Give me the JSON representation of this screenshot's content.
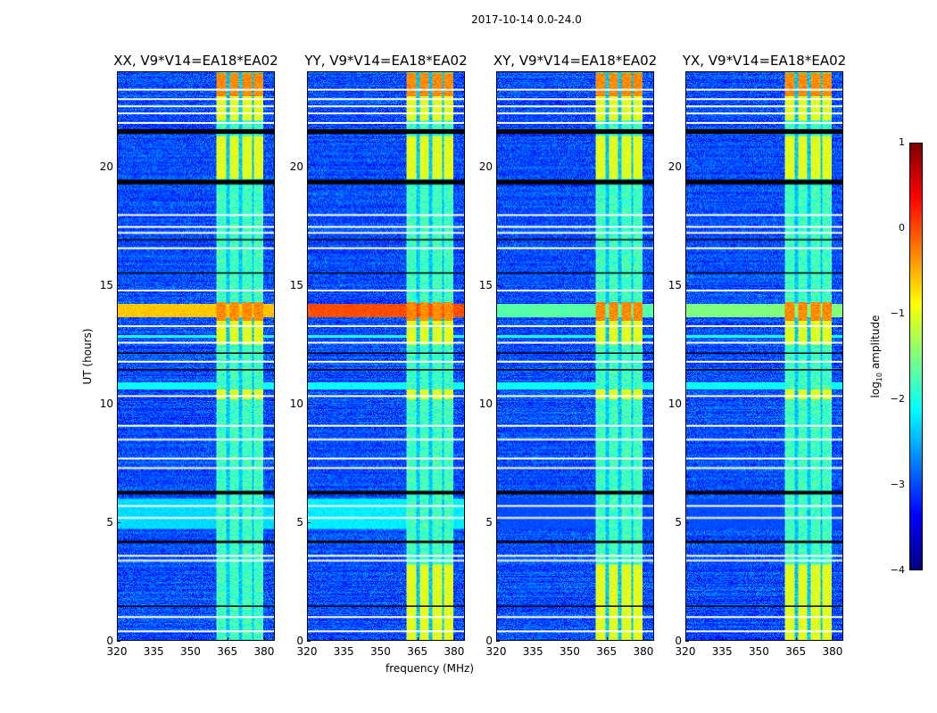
{
  "chart_data": {
    "type": "heatmap",
    "title": "2017-10-14 0.0-24.0",
    "xlabel": "frequency (MHz)",
    "ylabel": "UT (hours)",
    "xlim": [
      320,
      384.4
    ],
    "ylim": [
      0,
      24
    ],
    "xticks": [
      "320",
      "335",
      "350",
      "365",
      "380"
    ],
    "xtick_values": [
      320,
      335,
      350,
      365,
      380
    ],
    "yticks": [
      "0",
      "5",
      "10",
      "15",
      "20"
    ],
    "ytick_values": [
      0,
      5,
      10,
      15,
      20
    ],
    "colorbar": {
      "label": "log₁₀ amplitude",
      "label_main": "log",
      "label_sub": "10",
      "label_rest": " amplitude",
      "range": [
        -4,
        1
      ],
      "ticks": [
        "1",
        "0",
        "−1",
        "−2",
        "−3",
        "−4"
      ],
      "tick_values": [
        1,
        0,
        -1,
        -2,
        -3,
        -4
      ],
      "colormap": "jet"
    },
    "background_log_amplitude": -3.0,
    "rfi_band_mhz": [
      360.7,
      380
    ],
    "rfi_columns_mhz": [
      [
        360.7,
        364.7
      ],
      [
        366,
        369.5
      ],
      [
        371,
        375.3
      ],
      [
        376,
        380
      ]
    ],
    "flagged_white_hours": [
      23.3,
      22.9,
      22.6,
      22.3,
      21.9,
      18.0,
      17.5,
      17.25,
      16.6,
      14.8,
      13.3,
      12.6,
      11.8,
      10.35,
      9.1,
      8.5,
      7.7,
      7.3,
      5.7,
      5.2,
      3.6,
      3.4,
      1.0,
      0.4
    ],
    "flagged_black_hours": [
      [
        21.4,
        21.6
      ],
      [
        19.25,
        19.45
      ],
      [
        16.9,
        16.95
      ],
      [
        15.5,
        15.55
      ],
      [
        12.1,
        12.15
      ],
      [
        11.4,
        11.45
      ],
      [
        6.15,
        6.3
      ],
      [
        4.1,
        4.2
      ],
      [
        1.4,
        1.45
      ]
    ],
    "panels": [
      {
        "title": "XX, V9*V14=EA18*EA02",
        "broadband_14h": -0.6,
        "band_0_3h_bright": false,
        "low_5_6h": -2.3
      },
      {
        "title": "YY, V9*V14=EA18*EA02",
        "broadband_14h": 0.0,
        "band_0_3h_bright": true,
        "low_5_6h": -2.2
      },
      {
        "title": "XY, V9*V14=EA18*EA02",
        "broadband_14h": -1.7,
        "band_0_3h_bright": true,
        "low_5_6h": -3.0
      },
      {
        "title": "YX, V9*V14=EA18*EA02",
        "broadband_14h": -1.5,
        "band_0_3h_bright": true,
        "low_5_6h": -3.0
      }
    ]
  }
}
